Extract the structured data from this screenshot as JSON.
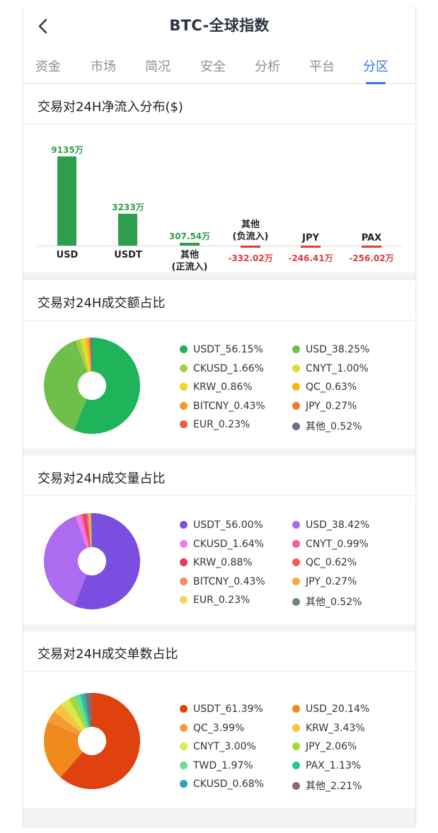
{
  "header": {
    "title": "BTC-全球指数",
    "tabs": [
      {
        "label": "资金",
        "active": false
      },
      {
        "label": "市场",
        "active": false
      },
      {
        "label": "简况",
        "active": false
      },
      {
        "label": "安全",
        "active": false
      },
      {
        "label": "分析",
        "active": false
      },
      {
        "label": "平台",
        "active": false
      },
      {
        "label": "分区",
        "active": true
      }
    ]
  },
  "inflow": {
    "title": "交易对24H净流入分布($)",
    "chart_data": {
      "type": "bar",
      "categories": [
        "USD",
        "USDT",
        "其他\n(正流入)",
        "其他\n(负流入)",
        "JPY",
        "PAX"
      ],
      "values": [
        9135,
        3233,
        307.54,
        -332.02,
        -246.41,
        -256.02
      ],
      "value_labels": [
        "9135万",
        "3233万",
        "307.54万",
        "-332.02万",
        "-246.41万",
        "-256.02万"
      ],
      "unit": "万",
      "colors": {
        "positive": "#2e9e4b",
        "negative": "#e03b3b"
      }
    },
    "labels": {
      "usd": "USD",
      "usdt": "USDT",
      "other_pos_1": "其他",
      "other_pos_2": "(正流入)",
      "other_neg_1": "其他",
      "other_neg_2": "(负流入)",
      "jpy": "JPY",
      "pax": "PAX"
    }
  },
  "amount_share": {
    "title": "交易对24H成交额占比",
    "chart_data": {
      "type": "pie",
      "labels": [
        "USDT_56.15%",
        "USD_38.25%",
        "CKUSD_1.66%",
        "CNYT_1.00%",
        "KRW_0.86%",
        "QC_0.63%",
        "BITCNY_0.43%",
        "JPY_0.27%",
        "EUR_0.23%",
        "其他_0.52%"
      ],
      "values": [
        56.15,
        38.25,
        1.66,
        1.0,
        0.86,
        0.63,
        0.43,
        0.27,
        0.23,
        0.52
      ],
      "colors": [
        "#1fb35a",
        "#6ec04a",
        "#a7cf3c",
        "#d8e02f",
        "#f7d21b",
        "#f2b61a",
        "#f29a2a",
        "#ef7b27",
        "#ef5a3a",
        "#6b6f8a"
      ]
    }
  },
  "volume_share": {
    "title": "交易对24H成交量占比",
    "chart_data": {
      "type": "pie",
      "labels": [
        "USDT_56.00%",
        "USD_38.42%",
        "CKUSD_1.64%",
        "CNYT_0.99%",
        "KRW_0.88%",
        "QC_0.62%",
        "BITCNY_0.43%",
        "JPY_0.27%",
        "EUR_0.23%",
        "其他_0.52%"
      ],
      "values": [
        56.0,
        38.42,
        1.64,
        0.99,
        0.88,
        0.62,
        0.43,
        0.27,
        0.23,
        0.52
      ],
      "colors": [
        "#7a4fe0",
        "#ad6cf0",
        "#f07ae8",
        "#f0609a",
        "#e8345e",
        "#f25a5a",
        "#f58a66",
        "#f7a845",
        "#f9d05c",
        "#6f8a84"
      ]
    }
  },
  "count_share": {
    "title": "交易对24H成交单数占比",
    "chart_data": {
      "type": "pie",
      "labels": [
        "USDT_61.39%",
        "USD_20.14%",
        "QC_3.99%",
        "KRW_3.43%",
        "CNYT_3.00%",
        "JPY_2.06%",
        "TWD_1.97%",
        "PAX_1.13%",
        "CKUSD_0.68%",
        "其他_2.21%"
      ],
      "values": [
        61.39,
        20.14,
        3.99,
        3.43,
        3.0,
        2.06,
        1.97,
        1.13,
        0.68,
        2.21
      ],
      "colors": [
        "#e0420f",
        "#f08a1c",
        "#f39b37",
        "#f8c440",
        "#d8ea4e",
        "#a8d83a",
        "#66e08a",
        "#22c89a",
        "#2a9fc8",
        "#8a6a66"
      ]
    }
  }
}
